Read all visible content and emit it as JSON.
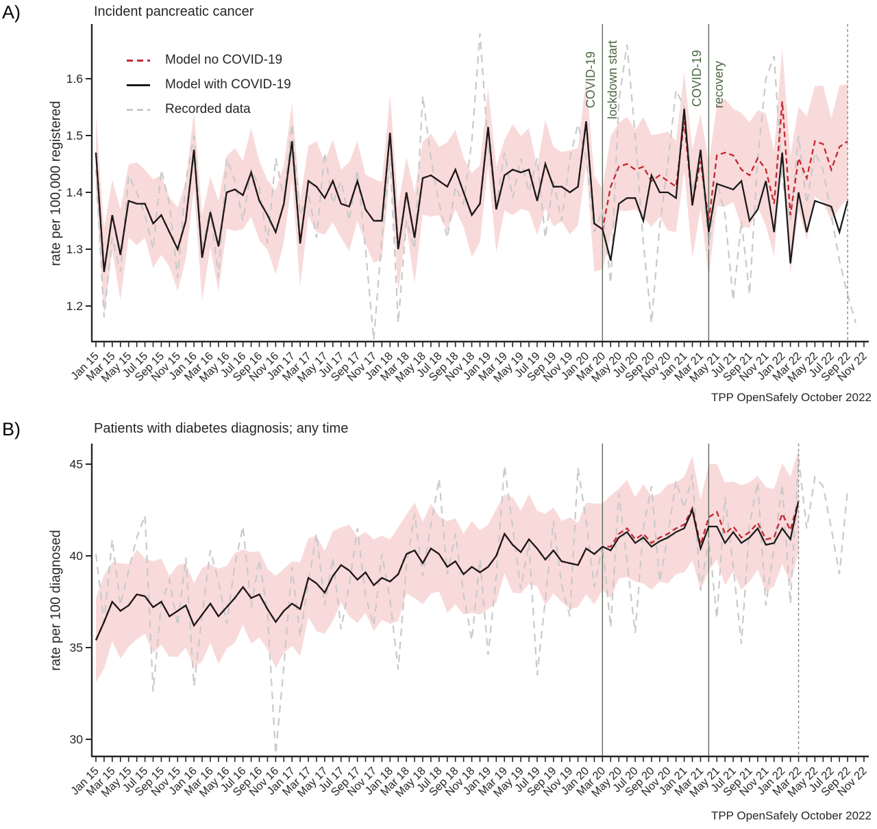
{
  "figure": {
    "background": "#ffffff"
  },
  "colors": {
    "model_no_covid": "#c42a33",
    "model_with_covid": "#1a1a1a",
    "recorded": "#c9c9c9",
    "ci_band": "#f9dada",
    "annotation_green": "#4a6741",
    "event_line": "#5a6b5a",
    "end_line": "#888888",
    "axis": "#262626"
  },
  "legend": {
    "items": [
      {
        "label": "Model no COVID-19",
        "series": "model_no_covid"
      },
      {
        "label": "Model with COVID-19",
        "series": "model_with_covid"
      },
      {
        "label": "Recorded data",
        "series": "recorded"
      }
    ]
  },
  "panel_a": {
    "letter": "A)",
    "title": "Incident pancreatic cancer",
    "ylabel": "rate per 100,000 registered",
    "caption": "TPP OpenSafely October 2022",
    "annotation_lockdown_line1": "COVID-19",
    "annotation_lockdown_line2": "lockdown start",
    "annotation_recovery_line1": "COVID-19",
    "annotation_recovery_line2": "recovery"
  },
  "panel_b": {
    "letter": "B)",
    "title": "Patients with diabetes diagnosis; any time",
    "ylabel": "rate per 100 diagnosed",
    "caption": "TPP OpenSafely October 2022"
  },
  "chart_data": [
    {
      "name": "incident-pancreatic-cancer",
      "type": "line",
      "title": "Incident pancreatic cancer",
      "ylabel": "rate per 100,000 registered",
      "ylim": [
        1.136,
        1.696
      ],
      "n_months": 95,
      "x_start": "Jan 15",
      "x_end": "Nov 22",
      "x_tick_labels": [
        "Jan 15",
        "Mar 15",
        "May 15",
        "Jul 15",
        "Sep 15",
        "Nov 15",
        "Jan 16",
        "Mar 16",
        "May 16",
        "Jul 16",
        "Sep 16",
        "Nov 16",
        "Jan 17",
        "Mar 17",
        "May 17",
        "Jul 17",
        "Sep 17",
        "Nov 17",
        "Jan 18",
        "Mar 18",
        "May 18",
        "Jul 18",
        "Sep 18",
        "Nov 18",
        "Jan 19",
        "Mar 19",
        "May 19",
        "Jul 19",
        "Sep 19",
        "Nov 19",
        "Jan 20",
        "Mar 20",
        "May 20",
        "Jul 20",
        "Sep 20",
        "Nov 20",
        "Jan 21",
        "Mar 21",
        "May 21",
        "Jul 21",
        "Sep 21",
        "Nov 21",
        "Jan 22",
        "Mar 22",
        "May 22",
        "Jul 22",
        "Sep 22",
        "Nov 22"
      ],
      "yticks": [
        {
          "v": 1.2,
          "label": "1.2"
        },
        {
          "v": 1.3,
          "label": "1.3"
        },
        {
          "v": 1.4,
          "label": "1.4"
        },
        {
          "v": 1.5,
          "label": "1.5"
        },
        {
          "v": 1.6,
          "label": "1.6"
        }
      ],
      "events": {
        "lockdown_index": 62,
        "recovery_index": 75
      },
      "model_end_index": 92,
      "series": {
        "model_with_covid": [
          1.47,
          1.26,
          1.36,
          1.29,
          1.385,
          1.38,
          1.38,
          1.345,
          1.36,
          1.33,
          1.3,
          1.35,
          1.475,
          1.285,
          1.365,
          1.305,
          1.4,
          1.405,
          1.395,
          1.435,
          1.385,
          1.36,
          1.33,
          1.38,
          1.49,
          1.31,
          1.42,
          1.41,
          1.39,
          1.42,
          1.38,
          1.375,
          1.42,
          1.37,
          1.35,
          1.35,
          1.505,
          1.3,
          1.4,
          1.32,
          1.425,
          1.43,
          1.42,
          1.41,
          1.44,
          1.4,
          1.36,
          1.38,
          1.515,
          1.37,
          1.43,
          1.44,
          1.435,
          1.44,
          1.385,
          1.45,
          1.41,
          1.41,
          1.4,
          1.41,
          1.525,
          1.345,
          1.335,
          1.28,
          1.38,
          1.39,
          1.39,
          1.35,
          1.43,
          1.4,
          1.4,
          1.39,
          1.547,
          1.377,
          1.475,
          1.33,
          1.415,
          1.41,
          1.405,
          1.42,
          1.35,
          1.37,
          1.42,
          1.33,
          1.47,
          1.275,
          1.4,
          1.33,
          1.385,
          1.38,
          1.375,
          1.33,
          1.385
        ],
        "model_no_covid": [
          1.47,
          1.26,
          1.36,
          1.29,
          1.385,
          1.38,
          1.38,
          1.345,
          1.36,
          1.33,
          1.3,
          1.35,
          1.475,
          1.285,
          1.365,
          1.305,
          1.4,
          1.405,
          1.395,
          1.435,
          1.385,
          1.36,
          1.33,
          1.38,
          1.49,
          1.31,
          1.42,
          1.41,
          1.39,
          1.42,
          1.38,
          1.375,
          1.42,
          1.37,
          1.35,
          1.35,
          1.505,
          1.3,
          1.4,
          1.32,
          1.425,
          1.43,
          1.42,
          1.41,
          1.44,
          1.4,
          1.36,
          1.38,
          1.515,
          1.37,
          1.43,
          1.44,
          1.435,
          1.44,
          1.385,
          1.45,
          1.41,
          1.41,
          1.4,
          1.41,
          1.525,
          1.345,
          1.335,
          1.41,
          1.445,
          1.45,
          1.44,
          1.445,
          1.42,
          1.43,
          1.42,
          1.41,
          1.525,
          1.38,
          1.455,
          1.35,
          1.465,
          1.47,
          1.465,
          1.44,
          1.43,
          1.46,
          1.44,
          1.38,
          1.56,
          1.36,
          1.46,
          1.425,
          1.49,
          1.485,
          1.44,
          1.48,
          1.49
        ],
        "recorded": [
          1.44,
          1.18,
          1.32,
          1.26,
          1.43,
          1.4,
          1.36,
          1.3,
          1.44,
          1.38,
          1.25,
          1.42,
          1.5,
          1.3,
          1.37,
          1.25,
          1.46,
          1.42,
          1.35,
          1.44,
          1.41,
          1.31,
          1.46,
          1.39,
          1.52,
          1.36,
          1.4,
          1.32,
          1.47,
          1.38,
          1.42,
          1.35,
          1.44,
          1.3,
          1.14,
          1.32,
          1.46,
          1.17,
          1.35,
          1.3,
          1.57,
          1.46,
          1.38,
          1.32,
          1.41,
          1.38,
          1.49,
          1.68,
          1.48,
          1.38,
          1.47,
          1.39,
          1.46,
          1.4,
          1.46,
          1.32,
          1.42,
          1.35,
          1.46,
          1.52,
          1.46,
          1.33,
          1.37,
          1.24,
          1.56,
          1.66,
          1.5,
          1.31,
          1.17,
          1.34,
          1.45,
          1.58,
          1.55,
          1.4,
          1.47,
          1.3,
          1.42,
          1.36,
          1.21,
          1.35,
          1.22,
          1.46,
          1.6,
          1.64,
          1.42,
          1.35,
          1.5,
          1.38,
          1.47,
          1.44,
          1.36,
          1.28,
          1.22,
          1.17
        ],
        "ci_half_width": [
          0.068,
          0.076,
          0.062,
          0.08,
          0.064,
          0.073,
          0.06,
          0.078,
          0.07,
          0.061,
          0.074,
          0.068,
          0.068,
          0.076,
          0.062,
          0.08,
          0.064,
          0.073,
          0.06,
          0.078,
          0.07,
          0.061,
          0.074,
          0.068,
          0.068,
          0.076,
          0.062,
          0.08,
          0.064,
          0.073,
          0.06,
          0.078,
          0.07,
          0.061,
          0.074,
          0.068,
          0.068,
          0.076,
          0.062,
          0.08,
          0.064,
          0.073,
          0.06,
          0.078,
          0.07,
          0.061,
          0.074,
          0.068,
          0.068,
          0.076,
          0.062,
          0.08,
          0.064,
          0.073,
          0.06,
          0.078,
          0.07,
          0.061,
          0.074,
          0.068,
          0.075,
          0.084,
          0.071,
          0.089,
          0.077,
          0.083,
          0.07,
          0.088,
          0.081,
          0.073,
          0.087,
          0.08,
          0.087,
          0.096,
          0.083,
          0.101,
          0.089,
          0.095,
          0.082,
          0.1,
          0.093,
          0.085,
          0.099,
          0.092,
          0.095,
          0.104,
          0.091,
          0.109,
          0.097,
          0.103,
          0.09,
          0.108,
          0.101
        ]
      }
    },
    {
      "name": "patients-with-diabetes",
      "type": "line",
      "title": "Patients with diabetes diagnosis; any time",
      "ylabel": "rate per 100 diagnosed",
      "ylim": [
        29.0,
        46.1
      ],
      "n_months": 95,
      "x_start": "Jan 15",
      "x_end": "Nov 22",
      "x_tick_labels": [
        "Jan 15",
        "Mar 15",
        "May 15",
        "Jul 15",
        "Sep 15",
        "Nov 15",
        "Jan 16",
        "Mar 16",
        "May 16",
        "Jul 16",
        "Sep 16",
        "Nov 16",
        "Jan 17",
        "Mar 17",
        "May 17",
        "Jul 17",
        "Sep 17",
        "Nov 17",
        "Jan 18",
        "Mar 18",
        "May 18",
        "Jul 18",
        "Sep 18",
        "Nov 18",
        "Jan 19",
        "Mar 19",
        "May 19",
        "Jul 19",
        "Sep 19",
        "Nov 19",
        "Jan 20",
        "Mar 20",
        "May 20",
        "Jul 20",
        "Sep 20",
        "Nov 20",
        "Jan 21",
        "Mar 21",
        "May 21",
        "Jul 21",
        "Sep 21",
        "Nov 21",
        "Jan 22",
        "Mar 22",
        "May 22",
        "Jul 22",
        "Sep 22",
        "Nov 22"
      ],
      "yticks": [
        {
          "v": 30,
          "label": "30"
        },
        {
          "v": 35,
          "label": "35"
        },
        {
          "v": 40,
          "label": "40"
        },
        {
          "v": 45,
          "label": "45"
        }
      ],
      "events": {
        "lockdown_index": 62,
        "recovery_index": 75
      },
      "model_end_index": 86,
      "series": {
        "model_with_covid": [
          35.4,
          36.4,
          37.5,
          37.0,
          37.3,
          37.9,
          37.8,
          37.2,
          37.5,
          36.7,
          37.0,
          37.3,
          36.2,
          36.8,
          37.4,
          36.7,
          37.2,
          37.7,
          38.3,
          37.7,
          37.9,
          37.1,
          36.4,
          37.0,
          37.4,
          37.1,
          38.8,
          38.5,
          38.0,
          38.9,
          39.5,
          39.2,
          38.7,
          39.1,
          38.4,
          38.8,
          38.6,
          39.0,
          40.1,
          40.3,
          39.6,
          40.4,
          40.1,
          39.4,
          39.7,
          39.0,
          39.4,
          39.1,
          39.4,
          40.0,
          41.2,
          40.6,
          40.2,
          40.9,
          40.4,
          39.8,
          40.3,
          39.7,
          39.6,
          39.5,
          40.4,
          40.1,
          40.5,
          40.3,
          41.0,
          41.3,
          40.7,
          41.0,
          40.5,
          40.8,
          41.0,
          41.3,
          41.5,
          42.5,
          40.4,
          41.6,
          41.6,
          40.7,
          41.3,
          40.7,
          41.0,
          41.5,
          40.6,
          40.7,
          41.5,
          40.9,
          43.0
        ],
        "model_no_covid": [
          35.4,
          36.4,
          37.5,
          37.0,
          37.3,
          37.9,
          37.8,
          37.2,
          37.5,
          36.7,
          37.0,
          37.3,
          36.2,
          36.8,
          37.4,
          36.7,
          37.2,
          37.7,
          38.3,
          37.7,
          37.9,
          37.1,
          36.4,
          37.0,
          37.4,
          37.1,
          38.8,
          38.5,
          38.0,
          38.9,
          39.5,
          39.2,
          38.7,
          39.1,
          38.4,
          38.8,
          38.6,
          39.0,
          40.1,
          40.3,
          39.6,
          40.4,
          40.1,
          39.4,
          39.7,
          39.0,
          39.4,
          39.1,
          39.4,
          40.0,
          41.2,
          40.6,
          40.2,
          40.9,
          40.4,
          39.8,
          40.3,
          39.7,
          39.6,
          39.5,
          40.4,
          40.1,
          40.5,
          40.5,
          41.2,
          41.5,
          40.9,
          41.2,
          40.7,
          41.0,
          41.2,
          41.5,
          41.7,
          42.6,
          40.6,
          42.1,
          42.4,
          41.2,
          41.6,
          41.0,
          41.3,
          41.8,
          40.9,
          41.0,
          42.3,
          41.4,
          43.0
        ],
        "recorded": [
          40.1,
          36.4,
          40.9,
          37.3,
          39.2,
          41.0,
          42.2,
          32.6,
          37.4,
          38.7,
          36.2,
          39.9,
          32.9,
          36.8,
          40.3,
          38.6,
          36.3,
          39.5,
          41.6,
          37.2,
          39.8,
          36.9,
          29.2,
          34.0,
          39.4,
          35.6,
          38.6,
          41.2,
          37.3,
          39.9,
          36.0,
          38.4,
          41.5,
          37.8,
          36.2,
          40.1,
          37.6,
          33.8,
          39.5,
          42.3,
          38.9,
          41.7,
          44.2,
          39.0,
          41.2,
          37.9,
          35.4,
          39.8,
          34.6,
          38.9,
          44.9,
          41.6,
          38.2,
          40.7,
          33.5,
          37.6,
          41.9,
          38.4,
          36.7,
          44.8,
          41.9,
          38.3,
          40.6,
          36.1,
          43.4,
          39.7,
          35.8,
          41.5,
          43.8,
          38.6,
          41.1,
          44.1,
          42.6,
          44.4,
          38.1,
          41.0,
          36.6,
          43.2,
          39.4,
          35.2,
          41.7,
          44.0,
          37.3,
          40.5,
          43.9,
          37.4,
          45.3,
          41.5,
          44.3,
          43.8,
          41.5,
          39.0,
          43.6
        ],
        "ci_half_width": [
          2.3,
          2.55,
          2.15,
          2.6,
          2.25,
          2.45,
          2.05,
          2.5,
          2.35,
          2.2,
          2.5,
          2.3,
          2.3,
          2.55,
          2.15,
          2.6,
          2.25,
          2.45,
          2.05,
          2.5,
          2.35,
          2.2,
          2.5,
          2.3,
          2.3,
          2.55,
          2.15,
          2.6,
          2.25,
          2.45,
          2.05,
          2.5,
          2.35,
          2.2,
          2.5,
          2.3,
          2.3,
          2.55,
          2.15,
          2.6,
          2.25,
          2.45,
          2.05,
          2.5,
          2.35,
          2.2,
          2.5,
          2.3,
          2.3,
          2.55,
          2.15,
          2.6,
          2.25,
          2.45,
          2.05,
          2.5,
          2.35,
          2.2,
          2.5,
          2.3,
          2.5,
          2.75,
          2.35,
          2.8,
          2.45,
          2.65,
          2.3,
          2.7,
          2.55,
          2.4,
          2.7,
          2.5,
          2.6,
          2.85,
          2.45,
          2.9,
          2.6,
          2.8,
          2.45,
          2.85,
          2.7,
          2.55,
          2.85,
          2.65,
          2.75,
          2.9,
          2.8
        ]
      }
    }
  ]
}
